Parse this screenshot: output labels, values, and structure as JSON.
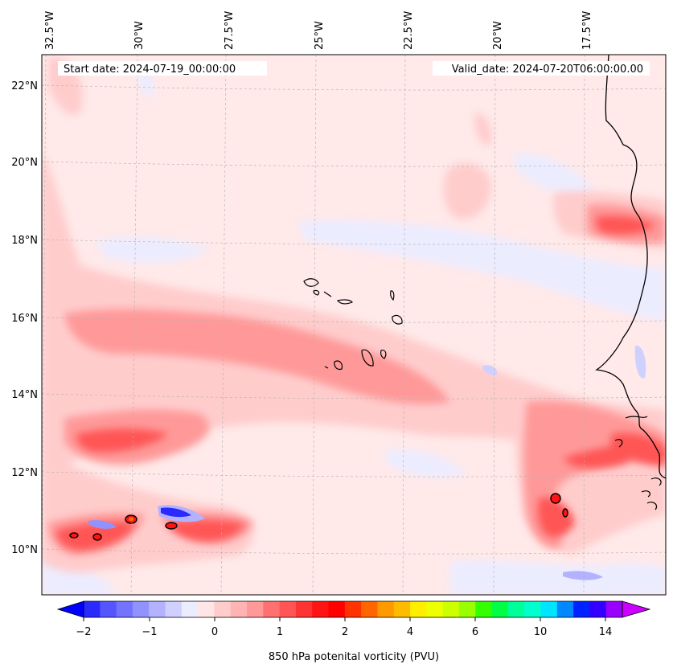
{
  "header": {
    "start_date": "Start date: 2024-07-19_00:00:00",
    "valid_date": "Valid_date: 2024-07-20T06:00:00.00"
  },
  "lon_labels": [
    "32.5°W",
    "30°W",
    "27.5°W",
    "25°W",
    "22.5°W",
    "20°W",
    "17.5°W"
  ],
  "lat_labels": [
    "22°N",
    "20°N",
    "18°N",
    "16°N",
    "14°N",
    "12°N",
    "10°N"
  ],
  "colorbar": {
    "label": "850 hPa potenital vorticity (PVU)",
    "ticks": [
      "−2",
      "−1",
      "0",
      "1",
      "2",
      "4",
      "6",
      "10",
      "14"
    ],
    "colors": [
      "#0000ff",
      "#2a2aff",
      "#5555ff",
      "#7373ff",
      "#9292ff",
      "#b2b2ff",
      "#d0d0ff",
      "#ececff",
      "#ffe6e6",
      "#ffcccc",
      "#ffb3b3",
      "#ff9999",
      "#ff7070",
      "#ff5555",
      "#ff3333",
      "#ff1414",
      "#ff0000",
      "#ff3300",
      "#ff6600",
      "#ff9900",
      "#ffbb00",
      "#ffee00",
      "#eeff00",
      "#ccff00",
      "#99ff00",
      "#33ff00",
      "#00ff44",
      "#00ff99",
      "#00ffcc",
      "#00e5ff",
      "#0088ff",
      "#0022ff",
      "#3300ff",
      "#9900ff",
      "#cc00ff"
    ]
  },
  "colors": {
    "background": "#ffe9e9",
    "light_red": "#ffcccc",
    "mid_red": "#ff9999",
    "strong_red": "#ff5555",
    "light_blue": "#ececff",
    "mid_blue": "#b2b2ff",
    "deep_blue": "#2a2aff",
    "coast": "#000000"
  }
}
